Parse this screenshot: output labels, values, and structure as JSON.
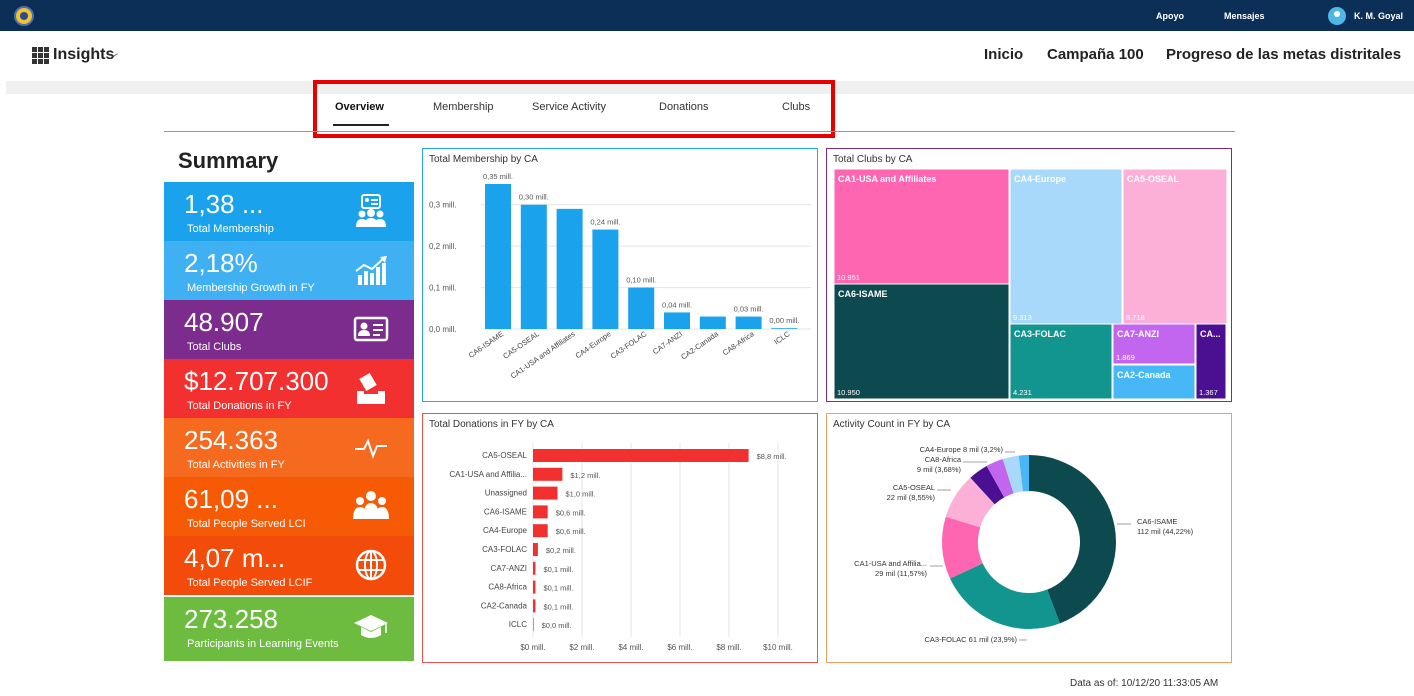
{
  "topbar": {
    "support": "Apoyo",
    "messages": "Mensajes",
    "user": "K. M. Goyal"
  },
  "header": {
    "app_title": "Insights",
    "chevron": "﹀",
    "nav": [
      "Inicio",
      "Campaña 100",
      "Progreso de las metas distritales"
    ]
  },
  "tabs": [
    "Overview",
    "Membership",
    "Service Activity",
    "Donations",
    "Clubs"
  ],
  "summary": {
    "title": "Summary",
    "tiles": [
      {
        "value": "1,38 ...",
        "label": "Total Membership",
        "color": "#1aa3ec",
        "icon": "id-card-people-icon"
      },
      {
        "value": "2,18%",
        "label": "Membership Growth in FY",
        "color": "#3fb0f2",
        "icon": "growth-chart-icon"
      },
      {
        "value": "48.907",
        "label": "Total Clubs",
        "color": "#7c2c8c",
        "icon": "club-card-icon"
      },
      {
        "value": "$12.707.300",
        "label": "Total Donations in FY",
        "color": "#f23030",
        "icon": "donation-box-icon"
      },
      {
        "value": "254.363",
        "label": "Total Activities in FY",
        "color": "#f56a1e",
        "icon": "activity-pulse-icon"
      },
      {
        "value": "61,09 ...",
        "label": "Total People Served LCI",
        "color": "#f75a05",
        "icon": "people-group-icon"
      },
      {
        "value": "4,07 m...",
        "label": "Total People Served LCIF",
        "color": "#f24b0a",
        "icon": "globe-icon"
      },
      {
        "value": "273.258",
        "label": "Participants in Learning Events",
        "color": "#6dbb3f",
        "icon": "graduation-cap-icon"
      }
    ]
  },
  "charts": {
    "membership": {
      "title": "Total Membership by CA",
      "color": "#1aa3ec",
      "border": "#2aa7ea"
    },
    "clubs": {
      "title": "Total Clubs by CA",
      "border": "#7c2c8c"
    },
    "donations": {
      "title": "Total Donations in FY by CA",
      "color": "#f23030",
      "border": "#f05252"
    },
    "activity": {
      "title": "Activity Count in FY by CA",
      "border": "#f0a060"
    }
  },
  "chart_data": [
    {
      "type": "bar",
      "title": "Total Membership by CA",
      "categories": [
        "CA6-ISAME",
        "CA5-OSEAL",
        "CA1-USA and Affiliates",
        "CA4-Europe",
        "CA3-FOLAC",
        "CA7-ANZI",
        "CA2-Canada",
        "CA8-Africa",
        "ICLC"
      ],
      "values": [
        0.35,
        0.3,
        0.29,
        0.24,
        0.1,
        0.04,
        0.03,
        0.03,
        0.0
      ],
      "data_labels": [
        "0,35 mill.",
        "0,30 mill.",
        "",
        "0,24 mill.",
        "0,10 mill.",
        "0,04 mill.",
        "",
        "0,03 mill.",
        "0,00 mill."
      ],
      "yticks": [
        "0,0 mill.",
        "0,1 mill.",
        "0,2 mill.",
        "0,3 mill."
      ],
      "ylim": [
        0,
        0.35
      ]
    },
    {
      "type": "treemap",
      "title": "Total Clubs by CA",
      "items": [
        {
          "name": "CA1-USA and Affiliates",
          "value": 10951,
          "label": "10.951",
          "color": "#ff66b2"
        },
        {
          "name": "CA6-ISAME",
          "value": 10950,
          "label": "10.950",
          "color": "#0d4a4f"
        },
        {
          "name": "CA4-Europe",
          "value": 9313,
          "label": "9.313",
          "color": "#a8d8fa"
        },
        {
          "name": "CA5-OSEAL",
          "value": 8718,
          "label": "8.718",
          "color": "#fcb0d8"
        },
        {
          "name": "CA3-FOLAC",
          "value": 4231,
          "label": "4.231",
          "color": "#13958f"
        },
        {
          "name": "CA7-ANZI",
          "value": 1869,
          "label": "1.869",
          "color": "#c266f0"
        },
        {
          "name": "CA2-Canada",
          "value": null,
          "label": "",
          "color": "#48b7f5"
        },
        {
          "name": "CA...",
          "value": 1367,
          "label": "1.367",
          "color": "#4b0f92"
        }
      ]
    },
    {
      "type": "bar",
      "orientation": "horizontal",
      "title": "Total Donations in FY by CA",
      "categories": [
        "CA5-OSEAL",
        "CA1-USA and Affilia...",
        "Unassigned",
        "CA6-ISAME",
        "CA4-Europe",
        "CA3-FOLAC",
        "CA7-ANZI",
        "CA8-Africa",
        "CA2-Canada",
        "ICLC"
      ],
      "values": [
        8.8,
        1.2,
        1.0,
        0.6,
        0.6,
        0.2,
        0.1,
        0.1,
        0.1,
        0.0
      ],
      "data_labels": [
        "$8,8 mill.",
        "$1,2 mill.",
        "$1,0 mill.",
        "$0,6 mill.",
        "$0,6 mill.",
        "$0,2 mill.",
        "$0,1 mill.",
        "$0,1 mill.",
        "$0,1 mill.",
        "$0,0 mill."
      ],
      "xticks": [
        "$0 mill.",
        "$2 mill.",
        "$4 mill.",
        "$6 mill.",
        "$8 mill.",
        "$10 mill."
      ],
      "xlim": [
        0,
        10
      ]
    },
    {
      "type": "pie",
      "subtype": "donut",
      "title": "Activity Count in FY by CA",
      "slices": [
        {
          "name": "CA6-ISAME",
          "label1": "CA6-ISAME",
          "label2": "112 mil (44,22%)",
          "pct": 44.22,
          "color": "#0d4a4f"
        },
        {
          "name": "CA3-FOLAC",
          "label1": "CA3-FOLAC 61 mil (23,9%)",
          "label2": "",
          "pct": 23.9,
          "color": "#13958f"
        },
        {
          "name": "CA1-USA and Affilia...",
          "label1": "CA1-USA and Affilia...",
          "label2": "29 mil (11,57%)",
          "pct": 11.57,
          "color": "#ff66b2"
        },
        {
          "name": "CA5-OSEAL",
          "label1": "CA5-OSEAL",
          "label2": "22 mil (8,55%)",
          "pct": 8.55,
          "color": "#fcb0d8"
        },
        {
          "name": "CA8-Africa",
          "label1": "CA8-Africa",
          "label2": "9 mil (3,68%)",
          "pct": 3.68,
          "color": "#4b0f92"
        },
        {
          "name": "CA4-Europe",
          "label1": "CA4-Europe 8 mil (3,2%)",
          "label2": "",
          "pct": 3.2,
          "color": "#c266f0"
        },
        {
          "name": "CA2-Canada",
          "label1": "",
          "label2": "",
          "pct": 3.0,
          "color": "#a8d8fa"
        },
        {
          "name": "CA7-ANZI",
          "label1": "",
          "label2": "",
          "pct": 1.88,
          "color": "#48b7f5"
        }
      ]
    }
  ],
  "footer": {
    "data_as_of": "Data as of: 10/12/20 11:33:05 AM"
  }
}
